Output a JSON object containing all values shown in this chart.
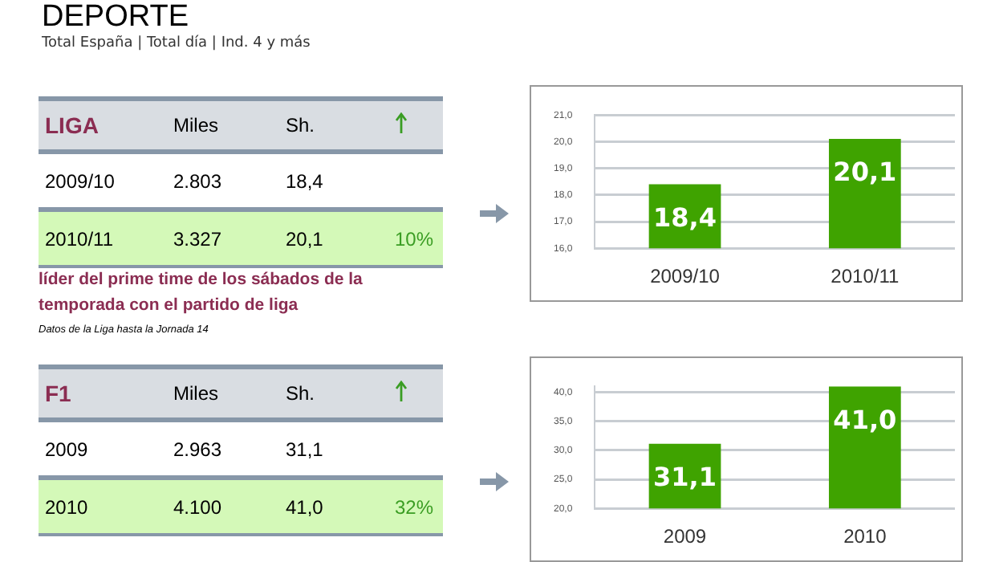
{
  "chart_data": [
    {
      "type": "other",
      "title": "DEPORTE",
      "subtitle": "Total España | Total día | Ind. 4 y más",
      "annotations": [
        "LIGA",
        "Miles",
        "Sh.",
        "2009/10",
        "2.803",
        "18,4",
        "2010/11",
        "3.327",
        "20,1",
        "10%",
        "líder del prime time de los sábados de la temporada con el partido de liga",
        "Datos de la Liga hasta la Jornada 14"
      ]
    },
    {
      "type": "bar",
      "categories": [
        "2009/10",
        "2010/11"
      ],
      "values": [
        18.4,
        20.1
      ],
      "value_labels": [
        "18,4",
        "20,1"
      ],
      "color": "#3fa300",
      "ylim": [
        16,
        21
      ],
      "yticks": [
        {
          "value": 16,
          "label": "16,0"
        },
        {
          "value": 17,
          "label": "17,0"
        },
        {
          "value": 18,
          "label": "18,0"
        },
        {
          "value": 19,
          "label": "19,0"
        },
        {
          "value": 20,
          "label": "20,0"
        },
        {
          "value": 21,
          "label": "21,0"
        }
      ],
      "grid": "y",
      "legend": false
    },
    {
      "type": "other",
      "annotations": [
        "F1",
        "Miles",
        "Sh.",
        "2009",
        "2.963",
        "31,1",
        "2010",
        "4.100",
        "41,0",
        "32%"
      ]
    },
    {
      "type": "bar",
      "categories": [
        "2009",
        "2010"
      ],
      "values": [
        31.1,
        41.0
      ],
      "value_labels": [
        "31,1",
        "41,0"
      ],
      "color": "#3fa300",
      "ylim": [
        20,
        41
      ],
      "yticks": [
        {
          "value": 20,
          "label": "20,0"
        },
        {
          "value": 25,
          "label": "25,0"
        },
        {
          "value": 30,
          "label": "30,0"
        },
        {
          "value": 35,
          "label": "35,0"
        },
        {
          "value": 40,
          "label": "40,0"
        }
      ],
      "grid": "y",
      "legend": false
    }
  ]
}
